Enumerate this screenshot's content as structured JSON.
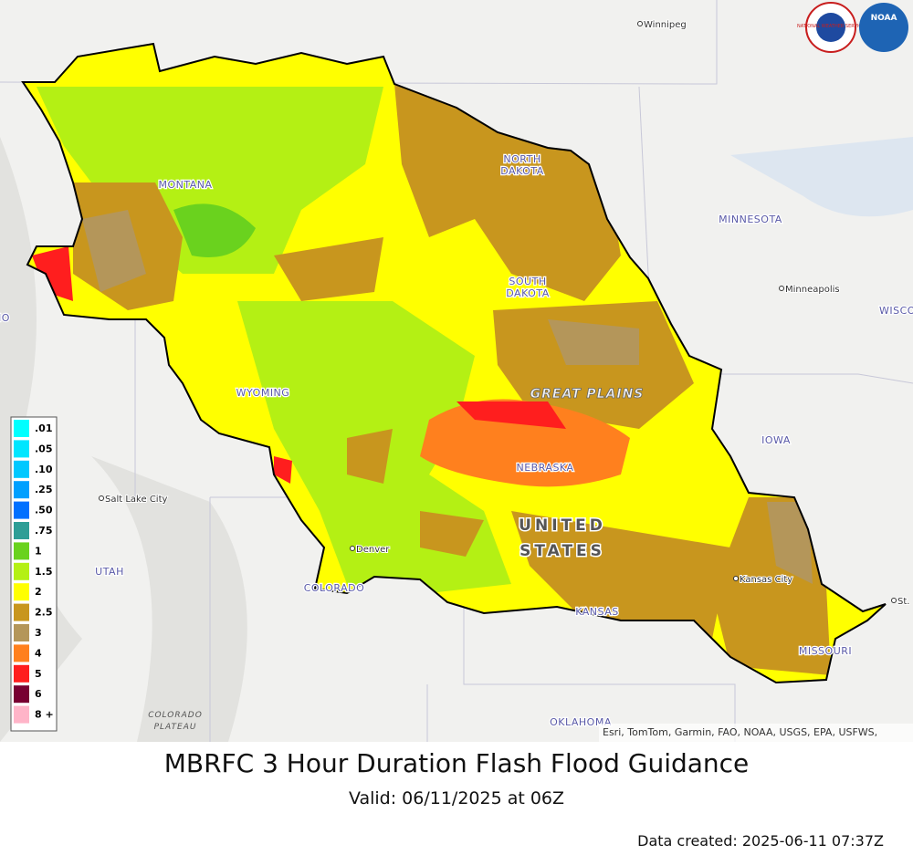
{
  "title": "MBRFC 3 Hour Duration Flash Flood Guidance",
  "subtitle": "Valid: 06/11/2025 at 06Z",
  "footer": "Data created: 2025-06-11 07:37Z",
  "map": {
    "attribution": "Esri, TomTom, Garmin, FAO, NOAA, USGS, EPA, USFWS,",
    "logos": {
      "nws": "NATIONAL WEATHER SERVICE",
      "noaa": "NOAA"
    },
    "labels": [
      {
        "lines": [
          "Winnipeg"
        ],
        "kind": "city"
      },
      {
        "lines": [
          "NORTH",
          "DAKOTA"
        ],
        "kind": "state"
      },
      {
        "lines": [
          "MONTANA"
        ],
        "kind": "state"
      },
      {
        "lines": [
          "MINNESOTA"
        ],
        "kind": "state"
      },
      {
        "lines": [
          "SOUTH",
          "DAKOTA"
        ],
        "kind": "state"
      },
      {
        "lines": [
          "Minneapolis"
        ],
        "kind": "city"
      },
      {
        "lines": [
          "WISCO"
        ],
        "kind": "state"
      },
      {
        "lines": [
          "HO"
        ],
        "kind": "state"
      },
      {
        "lines": [
          "GREAT PLAINS"
        ],
        "kind": "region"
      },
      {
        "lines": [
          "WYOMING"
        ],
        "kind": "state"
      },
      {
        "lines": [
          "IOWA"
        ],
        "kind": "state"
      },
      {
        "lines": [
          "NEBRASKA"
        ],
        "kind": "state"
      },
      {
        "lines": [
          "Salt Lake City"
        ],
        "kind": "city"
      },
      {
        "lines": [
          "UNITED",
          "STATES"
        ],
        "kind": "country"
      },
      {
        "lines": [
          "UTAH"
        ],
        "kind": "state"
      },
      {
        "lines": [
          "Denver"
        ],
        "kind": "city"
      },
      {
        "lines": [
          "COLORADO"
        ],
        "kind": "state"
      },
      {
        "lines": [
          "Kansas City"
        ],
        "kind": "city"
      },
      {
        "lines": [
          "KANSAS"
        ],
        "kind": "state"
      },
      {
        "lines": [
          "MISSOURI"
        ],
        "kind": "state"
      },
      {
        "lines": [
          "COLORADO",
          "PLATEAU"
        ],
        "kind": "plateau"
      },
      {
        "lines": [
          "OKLAHOMA"
        ],
        "kind": "state"
      },
      {
        "lines": [
          "St."
        ],
        "kind": "city"
      }
    ]
  },
  "legend": {
    "items": [
      {
        "label": ".01",
        "color": "#00ffff"
      },
      {
        "label": ".05",
        "color": "#00e6ff"
      },
      {
        "label": ".10",
        "color": "#00c8ff"
      },
      {
        "label": ".25",
        "color": "#00a0ff"
      },
      {
        "label": ".50",
        "color": "#0070ff"
      },
      {
        "label": ".75",
        "color": "#2e9e96"
      },
      {
        "label": "1",
        "color": "#6ad21e"
      },
      {
        "label": "1.5",
        "color": "#b4f014"
      },
      {
        "label": "2",
        "color": "#ffff00"
      },
      {
        "label": "2.5",
        "color": "#c8961e"
      },
      {
        "label": "3",
        "color": "#b4965a"
      },
      {
        "label": "4",
        "color": "#ff801e"
      },
      {
        "label": "5",
        "color": "#ff1e1e"
      },
      {
        "label": "6",
        "color": "#780032"
      },
      {
        "label": "8 +",
        "color": "#ffb4c8"
      }
    ]
  }
}
